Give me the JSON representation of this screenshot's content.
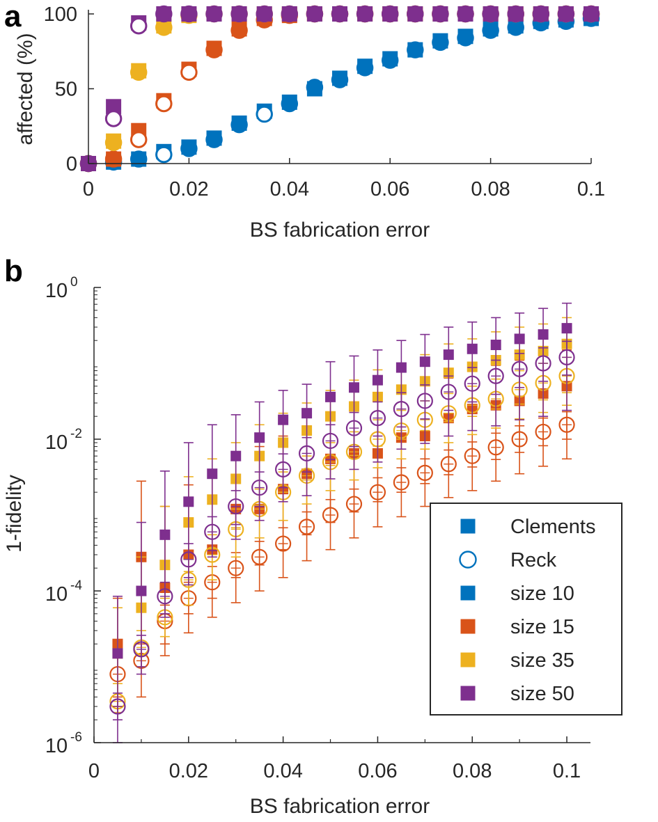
{
  "figure": {
    "panel_a_letter": "a",
    "panel_b_letter": "b"
  },
  "colors": {
    "blue": "#0072BD",
    "orange": "#D95319",
    "yellow": "#EDB120",
    "purple": "#7E2F8E",
    "axis": "#262626"
  },
  "chart_data": [
    {
      "id": "panel-a",
      "type": "scatter",
      "xlabel": "BS fabrication error",
      "ylabel": "affected (%)",
      "xlim": [
        0,
        0.1
      ],
      "ylim": [
        0,
        100
      ],
      "xticks": [
        "0",
        "0.02",
        "0.04",
        "0.06",
        "0.08",
        "0.1"
      ],
      "yticks": [
        "0",
        "50",
        "100"
      ],
      "x": [
        0,
        0.005,
        0.01,
        0.015,
        0.02,
        0.025,
        0.03,
        0.035,
        0.04,
        0.045,
        0.05,
        0.055,
        0.06,
        0.065,
        0.07,
        0.075,
        0.08,
        0.085,
        0.09,
        0.095,
        0.1
      ],
      "series": [
        {
          "name": "size 10 Clements",
          "color": "blue",
          "marker": "square",
          "values": [
            0,
            1,
            3,
            8,
            11,
            17,
            27,
            35,
            41,
            50,
            57,
            65,
            70,
            76,
            82,
            85,
            90,
            92,
            95,
            96,
            97
          ]
        },
        {
          "name": "size 10 Reck",
          "color": "blue",
          "marker": "circle",
          "values": [
            0,
            1,
            3,
            6,
            10,
            16,
            26,
            33,
            40,
            51,
            56,
            64,
            69,
            76,
            81,
            84,
            89,
            91,
            94,
            95,
            97
          ]
        },
        {
          "name": "size 15 Clements",
          "color": "orange",
          "marker": "square",
          "values": [
            0,
            3,
            22,
            42,
            63,
            77,
            90,
            97,
            99,
            100,
            100,
            100,
            100,
            100,
            100,
            100,
            100,
            100,
            100,
            100,
            100
          ]
        },
        {
          "name": "size 15 Reck",
          "color": "orange",
          "marker": "circle",
          "values": [
            0,
            3,
            16,
            40,
            61,
            76,
            89,
            96,
            99,
            100,
            100,
            100,
            100,
            100,
            100,
            100,
            100,
            100,
            100,
            100,
            100
          ]
        },
        {
          "name": "size 35 Clements",
          "color": "yellow",
          "marker": "square",
          "values": [
            0,
            15,
            62,
            92,
            99,
            100,
            100,
            100,
            100,
            100,
            100,
            100,
            100,
            100,
            100,
            100,
            100,
            100,
            100,
            100,
            100
          ]
        },
        {
          "name": "size 35 Reck",
          "color": "yellow",
          "marker": "circle",
          "values": [
            0,
            14,
            61,
            91,
            99,
            100,
            100,
            100,
            100,
            100,
            100,
            100,
            100,
            100,
            100,
            100,
            100,
            100,
            100,
            100,
            100
          ]
        },
        {
          "name": "size 50 Clements",
          "color": "purple",
          "marker": "square",
          "values": [
            0,
            38,
            94,
            100,
            100,
            100,
            100,
            100,
            100,
            100,
            100,
            100,
            100,
            100,
            100,
            100,
            100,
            100,
            100,
            100,
            100
          ]
        },
        {
          "name": "size 50 Reck",
          "color": "purple",
          "marker": "circle",
          "values": [
            0,
            30,
            92,
            100,
            100,
            100,
            100,
            100,
            100,
            100,
            100,
            100,
            100,
            100,
            100,
            100,
            100,
            100,
            100,
            100,
            100
          ]
        }
      ]
    },
    {
      "id": "panel-b",
      "type": "scatter",
      "yscale": "log",
      "xlabel": "BS fabrication error",
      "ylabel": "1-fidelity",
      "xlim": [
        0,
        0.105
      ],
      "ylim_exp": [
        -6,
        0
      ],
      "xticks": [
        "0",
        "0.02",
        "0.04",
        "0.06",
        "0.08",
        "0.1"
      ],
      "ytick_base": "10",
      "ytick_exponents": [
        "0",
        "-2",
        "-4",
        "-6"
      ],
      "legend_position": "bottom-right",
      "legend": [
        {
          "label": "Clements",
          "marker": "square",
          "color": "blue"
        },
        {
          "label": "Reck",
          "marker": "circle",
          "color": "blue"
        },
        {
          "label": "size 10",
          "marker": "square",
          "color": "blue"
        },
        {
          "label": "size 15",
          "marker": "square",
          "color": "orange"
        },
        {
          "label": "size 35",
          "marker": "square",
          "color": "yellow"
        },
        {
          "label": "size 50",
          "marker": "square",
          "color": "purple"
        }
      ],
      "x": [
        0.005,
        0.01,
        0.015,
        0.02,
        0.025,
        0.03,
        0.035,
        0.04,
        0.045,
        0.05,
        0.055,
        0.06,
        0.065,
        0.07,
        0.075,
        0.08,
        0.085,
        0.09,
        0.095,
        0.1
      ],
      "series": [
        {
          "name": "size 15 Reck",
          "color": "orange",
          "marker": "circle",
          "values": [
            8e-06,
            1.2e-05,
            4e-05,
            8e-05,
            0.00013,
            0.0002,
            0.00028,
            0.00042,
            0.0007,
            0.001,
            0.0014,
            0.002,
            0.0027,
            0.0036,
            0.0047,
            0.006,
            0.0078,
            0.01,
            0.0125,
            0.0155
          ],
          "err_low": [
            3e-06,
            4e-06,
            1.4e-05,
            2.8e-05,
            4.5e-05,
            7e-05,
            0.0001,
            0.00015,
            0.00025,
            0.00035,
            0.0005,
            0.0007,
            0.00095,
            0.0013,
            0.0017,
            0.0021,
            0.0028,
            0.0035,
            0.0044,
            0.0055
          ],
          "err_high": [
            1.6e-05,
            2e-05,
            6.5e-05,
            0.00013,
            0.00021,
            0.00032,
            0.00045,
            0.00068,
            0.0011,
            0.0016,
            0.0022,
            0.0031,
            0.0042,
            0.0055,
            0.0072,
            0.0092,
            0.012,
            0.015,
            0.019,
            0.023
          ]
        },
        {
          "name": "size 15 Clements",
          "color": "orange",
          "marker": "square",
          "values": [
            2e-05,
            0.00028,
            0.00011,
            0.0003,
            0.00035,
            0.0012,
            0.0012,
            0.0022,
            0.0035,
            0.0055,
            0.0065,
            0.0065,
            0.0105,
            0.011,
            0.019,
            0.025,
            0.028,
            0.032,
            0.04,
            0.05
          ],
          "err_low": [
            4e-06,
            1e-05,
            2e-05,
            5e-05,
            8e-05,
            0.00015,
            0.00022,
            0.00035,
            0.00055,
            0.0008,
            0.0011,
            0.0015,
            0.002,
            0.0026,
            0.0034,
            0.0043,
            0.0054,
            0.0067,
            0.0082,
            0.01
          ],
          "err_high": [
            8e-05,
            0.0028,
            0.0013,
            0.0025,
            0.0038,
            0.0055,
            0.008,
            0.011,
            0.015,
            0.02,
            0.026,
            0.033,
            0.042,
            0.052,
            0.064,
            0.078,
            0.094,
            0.11,
            0.13,
            0.15
          ]
        },
        {
          "name": "size 35 Reck",
          "color": "yellow",
          "marker": "circle",
          "values": [
            3.5e-06,
            1.8e-05,
            4.5e-05,
            0.00014,
            0.0003,
            0.00065,
            0.0012,
            0.002,
            0.0033,
            0.005,
            0.0068,
            0.01,
            0.013,
            0.018,
            0.022,
            0.028,
            0.034,
            0.045,
            0.055,
            0.068
          ],
          "err_low": [
            2.5e-06,
            1e-05,
            2.5e-05,
            6.5e-05,
            0.00014,
            0.00028,
            0.0005,
            0.00085,
            0.0014,
            0.0021,
            0.0029,
            0.0042,
            0.0055,
            0.0074,
            0.009,
            0.0115,
            0.014,
            0.0185,
            0.0225,
            0.028
          ],
          "err_high": [
            6e-06,
            3e-05,
            8e-05,
            0.00026,
            0.00055,
            0.0012,
            0.0022,
            0.0037,
            0.006,
            0.009,
            0.0125,
            0.018,
            0.024,
            0.032,
            0.04,
            0.05,
            0.062,
            0.08,
            0.1,
            0.12
          ]
        },
        {
          "name": "size 35 Clements",
          "color": "yellow",
          "marker": "square",
          "values": [
            1.5e-05,
            6e-05,
            0.00022,
            0.0008,
            0.0016,
            0.003,
            0.006,
            0.009,
            0.013,
            0.02,
            0.027,
            0.036,
            0.045,
            0.058,
            0.075,
            0.09,
            0.11,
            0.13,
            0.145,
            0.18
          ],
          "err_low": [
            3e-06,
            1.4e-05,
            5e-05,
            0.00018,
            0.00036,
            0.00068,
            0.00135,
            0.002,
            0.0029,
            0.0045,
            0.0061,
            0.0081,
            0.01,
            0.013,
            0.017,
            0.02,
            0.025,
            0.029,
            0.033,
            0.041
          ],
          "err_high": [
            6e-05,
            0.00028,
            0.0013,
            0.0032,
            0.0055,
            0.009,
            0.0155,
            0.022,
            0.03,
            0.044,
            0.06,
            0.082,
            0.1,
            0.13,
            0.18,
            0.21,
            0.26,
            0.3,
            0.33,
            0.4
          ]
        },
        {
          "name": "size 50 Reck",
          "color": "purple",
          "marker": "circle",
          "values": [
            3e-06,
            1.7e-05,
            8.5e-05,
            0.00026,
            0.0006,
            0.0013,
            0.0023,
            0.004,
            0.0065,
            0.0095,
            0.014,
            0.019,
            0.025,
            0.032,
            0.042,
            0.054,
            0.068,
            0.084,
            0.1,
            0.12
          ],
          "err_low": [
            2e-06,
            1e-05,
            5e-05,
            0.00015,
            0.00034,
            0.00075,
            0.0013,
            0.0023,
            0.0037,
            0.0054,
            0.008,
            0.011,
            0.0145,
            0.0185,
            0.024,
            0.031,
            0.039,
            0.048,
            0.058,
            0.07
          ],
          "err_high": [
            4.5e-06,
            2.6e-05,
            0.00013,
            0.00042,
            0.00095,
            0.0021,
            0.0037,
            0.0064,
            0.0105,
            0.0155,
            0.0225,
            0.031,
            0.041,
            0.052,
            0.068,
            0.088,
            0.11,
            0.135,
            0.16,
            0.195
          ]
        },
        {
          "name": "size 50 Clements",
          "color": "purple",
          "marker": "square",
          "values": [
            1.5e-05,
            0.0001,
            0.00055,
            0.0015,
            0.0035,
            0.006,
            0.0105,
            0.018,
            0.022,
            0.036,
            0.048,
            0.06,
            0.088,
            0.105,
            0.13,
            0.155,
            0.175,
            0.21,
            0.24,
            0.29
          ],
          "err_low": [
            1e-06,
            8e-06,
            4.5e-05,
            0.00012,
            0.00028,
            0.00048,
            0.00085,
            0.0015,
            0.0018,
            0.003,
            0.004,
            0.005,
            0.0074,
            0.0088,
            0.011,
            0.013,
            0.015,
            0.018,
            0.02,
            0.024
          ],
          "err_high": [
            8.5e-05,
            0.0008,
            0.0038,
            0.009,
            0.0155,
            0.021,
            0.031,
            0.044,
            0.053,
            0.105,
            0.125,
            0.15,
            0.2,
            0.24,
            0.3,
            0.35,
            0.4,
            0.46,
            0.53,
            0.62
          ]
        }
      ]
    }
  ]
}
